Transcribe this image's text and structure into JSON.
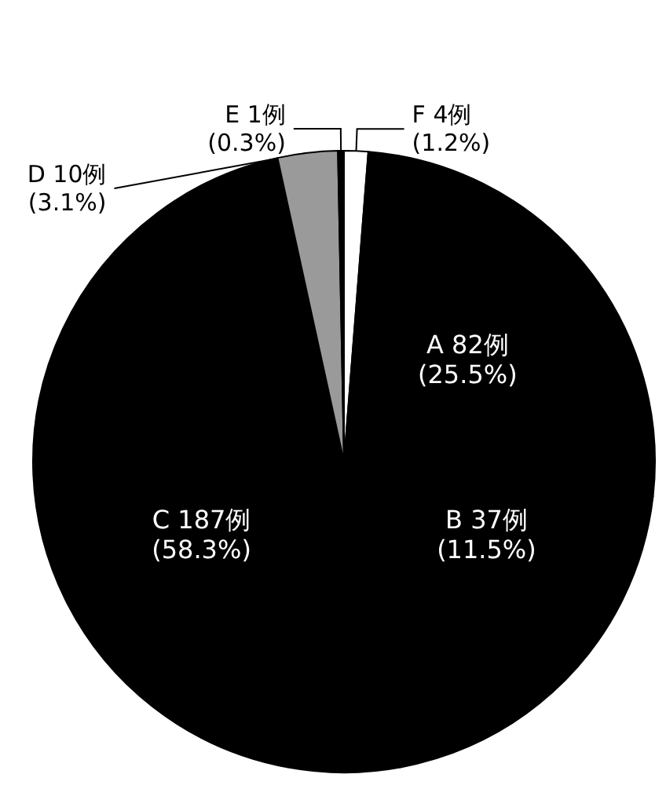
{
  "chart_data": {
    "type": "pie",
    "categories": [
      "F",
      "A",
      "B",
      "C",
      "D",
      "E"
    ],
    "values": [
      4,
      82,
      37,
      187,
      10,
      1
    ],
    "value_labels": [
      "4例\n(1.2%)",
      "82例\n(25.5%)",
      "37例\n(11.5%)",
      "187例\n(58.3%)",
      "10例\n(3.1%)",
      "1例\n(0.3%)"
    ],
    "colors": [
      "#ffffff",
      "#000000",
      "#000000",
      "#000000",
      "#9a9a9a",
      "#000000"
    ],
    "legend": false
  }
}
